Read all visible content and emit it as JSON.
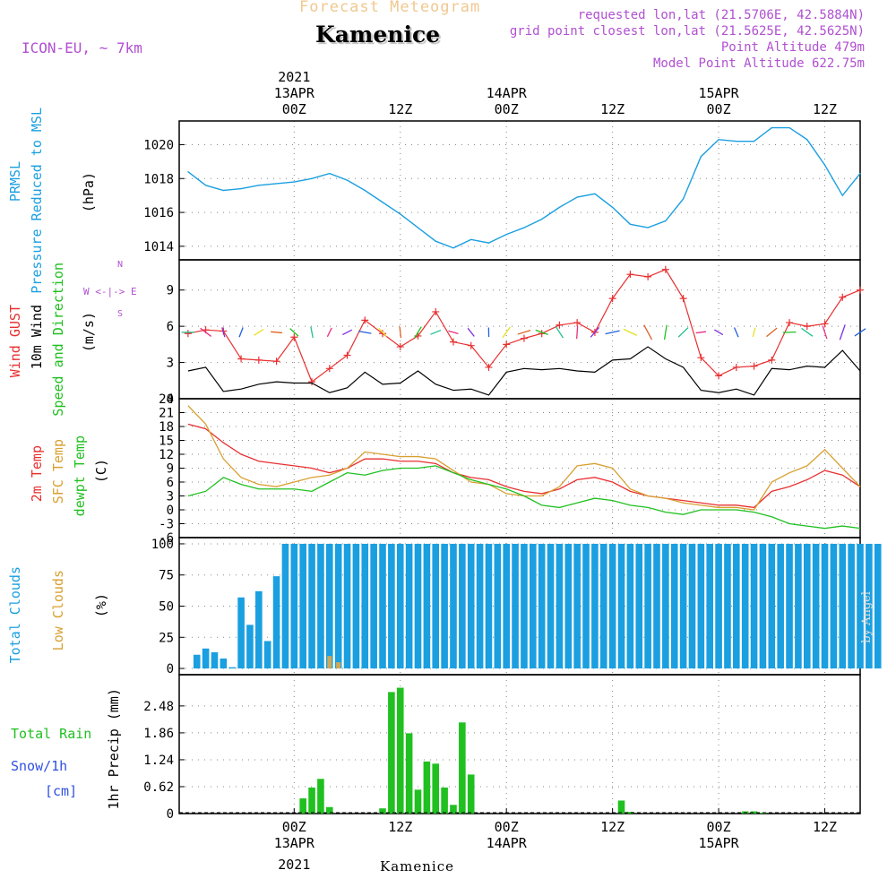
{
  "header": {
    "app_title": "Forecast Meteogram",
    "location": "Kamenice",
    "model": "ICON-EU, ~ 7km",
    "requested": "requested lon,lat (21.5706E, 42.5884N)",
    "grid": "grid point closest lon,lat (21.5625E, 42.5625N)",
    "altitude": "Point Altitude 479m",
    "model_altitude": "Model Point Altitude 622.75m",
    "watermark": "by Angel"
  },
  "time_axis": {
    "year": "2021",
    "ticks": [
      {
        "t": 0,
        "top": [
          "13APR",
          "00Z"
        ],
        "bottom": [
          "00Z",
          "13APR"
        ]
      },
      {
        "t": 12,
        "top": [
          "12Z"
        ],
        "bottom": [
          "12Z"
        ]
      },
      {
        "t": 24,
        "top": [
          "14APR",
          "00Z"
        ],
        "bottom": [
          "00Z",
          "14APR"
        ]
      },
      {
        "t": 36,
        "top": [
          "12Z"
        ],
        "bottom": [
          "12Z"
        ]
      },
      {
        "t": 48,
        "top": [
          "15APR",
          "00Z"
        ],
        "bottom": [
          "00Z",
          "15APR"
        ]
      },
      {
        "t": 60,
        "top": [
          "12Z"
        ],
        "bottom": [
          "12Z"
        ]
      }
    ],
    "footer": "Kamenice"
  },
  "panel_labels": {
    "pressure": [
      "PRMSL",
      "Pressure Reduced to MSL",
      "(hPa)"
    ],
    "wind": [
      "Wind GUST",
      "10m Wind",
      "Speed and Direction",
      "(m/s)"
    ],
    "compass": [
      "N",
      "W <-|-> E",
      "S"
    ],
    "temp": [
      "2m Temp",
      "SFC Temp",
      "dewpt Temp",
      "(C)"
    ],
    "clouds": [
      "Total Clouds",
      "Low Clouds",
      "(%)"
    ],
    "precip": [
      "Total  Rain",
      "Snow/1h",
      "[cm]",
      "1hr Precip (mm)"
    ]
  },
  "colors": {
    "pressure": "#1a9fe0",
    "gust": "#e83030",
    "wind": "#000000",
    "t2m": "#e83030",
    "sfc": "#d8a030",
    "dewpt": "#20c020",
    "total_clouds": "#1a9fe0",
    "low_clouds": "#d0a858",
    "rain": "#20c020",
    "snow": "#3050e0",
    "title": "#f0c890",
    "meta": "#b050d0"
  },
  "chart_data": [
    {
      "type": "line",
      "title": "PRMSL",
      "ylabel": "Pressure Reduced to MSL (hPa)",
      "ylim": [
        1013.2,
        1021.4
      ],
      "yticks": [
        1014,
        1016,
        1018,
        1020
      ],
      "x": [
        -12,
        -10,
        -8,
        -6,
        -4,
        -2,
        0,
        2,
        4,
        6,
        8,
        10,
        12,
        14,
        16,
        18,
        20,
        22,
        24,
        26,
        28,
        30,
        32,
        34,
        36,
        38,
        40,
        42,
        44,
        46,
        48,
        50,
        52,
        54,
        56,
        58,
        60,
        62,
        64
      ],
      "series": [
        {
          "name": "PRMSL",
          "values": [
            1018.4,
            1017.6,
            1017.3,
            1017.4,
            1017.6,
            1017.7,
            1017.8,
            1018.0,
            1018.3,
            1017.9,
            1017.3,
            1016.6,
            1015.9,
            1015.1,
            1014.3,
            1013.9,
            1014.4,
            1014.2,
            1014.7,
            1015.1,
            1015.6,
            1016.3,
            1016.9,
            1017.1,
            1016.3,
            1015.3,
            1015.1,
            1015.5,
            1016.8,
            1019.3,
            1020.3,
            1020.2,
            1020.2,
            1021.0,
            1021.0,
            1020.3,
            1018.8,
            1017.0,
            1018.3
          ]
        }
      ]
    },
    {
      "type": "line",
      "title": "Wind GUST / 10m Wind",
      "ylabel": "Speed and Direction (m/s)",
      "ylim": [
        0,
        11.5
      ],
      "yticks": [
        0,
        3,
        6,
        9
      ],
      "x": [
        -12,
        -10,
        -8,
        -6,
        -4,
        -2,
        0,
        2,
        4,
        6,
        8,
        10,
        12,
        14,
        16,
        18,
        20,
        22,
        24,
        26,
        28,
        30,
        32,
        34,
        36,
        38,
        40,
        42,
        44,
        46,
        48,
        50,
        52,
        54,
        56,
        58,
        60,
        62,
        64
      ],
      "series": [
        {
          "name": "Wind GUST",
          "values": [
            5.4,
            5.7,
            5.6,
            3.3,
            3.2,
            3.1,
            5.1,
            1.4,
            2.5,
            3.6,
            6.5,
            5.4,
            4.3,
            5.2,
            7.2,
            4.7,
            4.4,
            2.6,
            4.5,
            5.0,
            5.4,
            6.1,
            6.3,
            5.5,
            8.3,
            10.3,
            10.1,
            10.7,
            8.3,
            3.4,
            1.9,
            2.6,
            2.7,
            3.2,
            6.3,
            6.0,
            6.2,
            8.4,
            9.0
          ]
        },
        {
          "name": "10m Wind",
          "values": [
            2.3,
            2.6,
            0.6,
            0.8,
            1.2,
            1.4,
            1.3,
            1.3,
            0.5,
            0.9,
            2.2,
            1.2,
            1.3,
            2.3,
            1.2,
            0.7,
            0.8,
            0.3,
            2.2,
            2.5,
            2.4,
            2.5,
            2.3,
            2.2,
            3.2,
            3.3,
            4.3,
            3.3,
            2.6,
            0.7,
            0.5,
            0.8,
            0.3,
            2.5,
            2.4,
            2.7,
            2.6,
            4.0,
            2.3
          ]
        }
      ],
      "direction_arrow_colors": [
        "#20c090",
        "#e83080",
        "#8030e0",
        "#2060e0",
        "#e8e020",
        "#e06020",
        "#20c020"
      ]
    },
    {
      "type": "line",
      "title": "2m Temp / SFC Temp / dewpt Temp",
      "ylabel": "(C)",
      "ylim": [
        -6,
        24
      ],
      "yticks": [
        -6,
        -3,
        0,
        3,
        6,
        9,
        12,
        15,
        18,
        21,
        24
      ],
      "x": [
        -12,
        -10,
        -8,
        -6,
        -4,
        -2,
        0,
        2,
        4,
        6,
        8,
        10,
        12,
        14,
        16,
        18,
        20,
        22,
        24,
        26,
        28,
        30,
        32,
        34,
        36,
        38,
        40,
        42,
        44,
        46,
        48,
        50,
        52,
        54,
        56,
        58,
        60,
        62,
        64
      ],
      "series": [
        {
          "name": "2m Temp",
          "values": [
            18.5,
            17.5,
            14.5,
            12.0,
            10.5,
            10.0,
            9.5,
            9.0,
            8.0,
            9.0,
            11.0,
            11.0,
            10.5,
            10.5,
            10.0,
            8.0,
            7.0,
            6.5,
            5.0,
            4.0,
            3.5,
            4.5,
            6.5,
            7.0,
            6.0,
            4.0,
            3.0,
            2.5,
            2.0,
            1.5,
            1.0,
            1.0,
            0.5,
            4.0,
            5.0,
            6.5,
            8.5,
            7.5,
            5.0
          ]
        },
        {
          "name": "SFC Temp",
          "values": [
            22.5,
            18.5,
            11.0,
            7.0,
            5.5,
            5.0,
            6.0,
            7.0,
            7.5,
            9.0,
            12.5,
            12.0,
            11.5,
            11.5,
            11.0,
            8.5,
            6.0,
            5.5,
            3.5,
            3.0,
            3.0,
            5.0,
            9.5,
            10.0,
            9.0,
            4.5,
            3.0,
            2.5,
            1.5,
            1.0,
            0.5,
            0.5,
            0.0,
            6.0,
            8.0,
            9.5,
            13.0,
            9.0,
            5.0
          ]
        },
        {
          "name": "dewpt Temp",
          "values": [
            3.0,
            4.0,
            7.0,
            5.5,
            4.5,
            4.5,
            4.5,
            4.0,
            6.0,
            8.0,
            7.5,
            8.5,
            9.0,
            9.0,
            9.5,
            8.0,
            6.5,
            5.5,
            4.5,
            3.0,
            1.0,
            0.5,
            1.5,
            2.5,
            2.0,
            1.0,
            0.5,
            -0.5,
            -1.0,
            0.0,
            0.0,
            0.0,
            -0.5,
            -1.5,
            -3.0,
            -3.5,
            -4.0,
            -3.5,
            -4.0
          ]
        }
      ]
    },
    {
      "type": "bar",
      "title": "Total Clouds / Low Clouds",
      "ylabel": "(%)",
      "ylim": [
        -5,
        105
      ],
      "yticks": [
        0,
        25,
        50,
        75,
        100
      ],
      "x_start": -11,
      "x_step": 1,
      "series": [
        {
          "name": "Total Clouds",
          "values": [
            11,
            16,
            13,
            8,
            1,
            57,
            35,
            62,
            22,
            74,
            100,
            100,
            100,
            100,
            100,
            100,
            100,
            100,
            100,
            100,
            100,
            100,
            100,
            100,
            100,
            100,
            100,
            100,
            100,
            100,
            100,
            100,
            100,
            100,
            100,
            100,
            100,
            100,
            100,
            100,
            100,
            100,
            100,
            100,
            100,
            100,
            100,
            100,
            100,
            100,
            100,
            100,
            100,
            100,
            100,
            100,
            100,
            100,
            100,
            100,
            100,
            100,
            100,
            100,
            100,
            100,
            100,
            100,
            100,
            100,
            100,
            100,
            100,
            100,
            100,
            100,
            100,
            100
          ]
        },
        {
          "name": "Low Clouds",
          "values": [
            0,
            0,
            0,
            0,
            0,
            0,
            0,
            0,
            0,
            0,
            0,
            0,
            0,
            0,
            0,
            10,
            5,
            0,
            0,
            0,
            0,
            0,
            0,
            0,
            0,
            0,
            0,
            0,
            0,
            0,
            0,
            0,
            0,
            0,
            0,
            0,
            0,
            0,
            0,
            0,
            0,
            0,
            0,
            0,
            0,
            0,
            0,
            0,
            0,
            0,
            0,
            0,
            0,
            0,
            0,
            0,
            0,
            0,
            0,
            0,
            0,
            0,
            0,
            0,
            0,
            0,
            0,
            0,
            0,
            0,
            0,
            0,
            0,
            0,
            0,
            0,
            0,
            0
          ]
        }
      ]
    },
    {
      "type": "bar",
      "title": "Total Rain / Snow",
      "ylabel": "1hr Precip (mm)",
      "ylim": [
        0,
        3.2
      ],
      "yticks": [
        0,
        0.62,
        1.24,
        1.86,
        2.48
      ],
      "x_start": -11,
      "x_step": 1,
      "series": [
        {
          "name": "Total Rain",
          "values": [
            0,
            0,
            0,
            0,
            0,
            0,
            0,
            0,
            0,
            0,
            0,
            0,
            0.35,
            0.6,
            0.8,
            0.15,
            0,
            0,
            0,
            0,
            0,
            0.12,
            2.8,
            2.9,
            1.85,
            0.55,
            1.2,
            1.15,
            0.6,
            0.2,
            2.1,
            0.9,
            0,
            0,
            0,
            0,
            0,
            0,
            0,
            0,
            0,
            0,
            0,
            0,
            0,
            0,
            0,
            0,
            0.3,
            0.04,
            0,
            0,
            0,
            0,
            0,
            0,
            0,
            0,
            0,
            0,
            0,
            0,
            0.05,
            0.05,
            0.02,
            0,
            0,
            0,
            0,
            0,
            0,
            0,
            0,
            0,
            0,
            0,
            0,
            0
          ]
        }
      ]
    }
  ]
}
